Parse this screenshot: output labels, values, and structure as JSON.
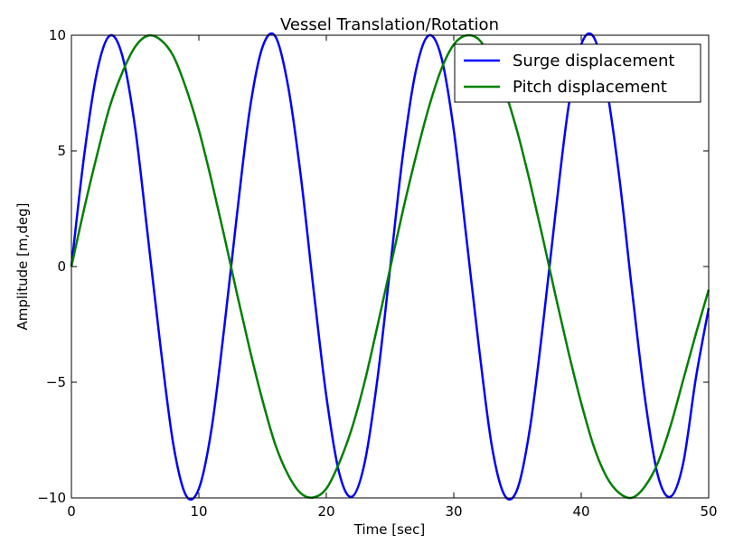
{
  "chart_data": {
    "type": "line",
    "title": "Vessel Translation/Rotation",
    "xlabel": "Time [sec]",
    "ylabel": "Amplitude [m,deg]",
    "xlim": [
      0,
      50
    ],
    "ylim": [
      -10,
      10
    ],
    "xticks": [
      0,
      10,
      20,
      30,
      40,
      50
    ],
    "xtick_labels": [
      "0",
      "10",
      "20",
      "30",
      "40",
      "50"
    ],
    "yticks": [
      -10,
      -5,
      0,
      5,
      10
    ],
    "ytick_labels": [
      "−10",
      "−5",
      "0",
      "5",
      "10"
    ],
    "grid": false,
    "legend_position": "top-right",
    "series": [
      {
        "name": "Surge displacement",
        "color": "#0000ff",
        "x": [
          0,
          1,
          2,
          3,
          4,
          5,
          6,
          7,
          8,
          9,
          10,
          11,
          12,
          13,
          14,
          15,
          16,
          17,
          18,
          19,
          20,
          21,
          22,
          23,
          24,
          25,
          26,
          27,
          28,
          29,
          30,
          31,
          32,
          33,
          34,
          35,
          36,
          37,
          38,
          39,
          40,
          41,
          42,
          43,
          44,
          45,
          46,
          47,
          48,
          49,
          50
        ],
        "y": [
          0,
          4.8,
          8.4,
          9.98,
          9.1,
          6.0,
          1.3,
          -3.5,
          -7.7,
          -9.9,
          -9.6,
          -7.0,
          -2.6,
          2.3,
          6.8,
          9.5,
          9.95,
          7.8,
          3.9,
          -1.0,
          -5.6,
          -8.9,
          -9.95,
          -8.5,
          -4.9,
          -0.1,
          4.8,
          8.4,
          9.98,
          9.1,
          5.9,
          1.2,
          -3.6,
          -7.8,
          -9.9,
          -9.6,
          -6.9,
          -2.5,
          2.4,
          6.9,
          9.6,
          9.9,
          7.7,
          3.8,
          -1.1,
          -5.7,
          -9.0,
          -9.95,
          -8.5,
          -4.8,
          -1.8
        ]
      },
      {
        "name": "Pitch displacement",
        "color": "#008000",
        "x": [
          0,
          1,
          2,
          3,
          4,
          5,
          6,
          7,
          8,
          9,
          10,
          11,
          12,
          13,
          14,
          15,
          16,
          17,
          18,
          19,
          20,
          21,
          22,
          23,
          24,
          25,
          26,
          27,
          28,
          29,
          30,
          31,
          32,
          33,
          34,
          35,
          36,
          37,
          38,
          39,
          40,
          41,
          42,
          43,
          44,
          45,
          46,
          47,
          48,
          49,
          50
        ],
        "y": [
          0,
          2.5,
          4.8,
          6.9,
          8.4,
          9.5,
          9.98,
          9.8,
          9.1,
          7.7,
          5.9,
          3.7,
          1.3,
          -1.2,
          -3.6,
          -5.8,
          -7.7,
          -9.0,
          -9.8,
          -9.98,
          -9.6,
          -8.5,
          -7.0,
          -5.0,
          -2.6,
          -0.1,
          2.4,
          4.7,
          6.8,
          8.5,
          9.6,
          9.99,
          9.8,
          8.9,
          7.6,
          5.8,
          3.6,
          1.2,
          -1.3,
          -3.7,
          -5.9,
          -7.8,
          -9.1,
          -9.8,
          -9.99,
          -9.5,
          -8.5,
          -6.9,
          -4.9,
          -2.9,
          -1.0
        ]
      }
    ]
  }
}
